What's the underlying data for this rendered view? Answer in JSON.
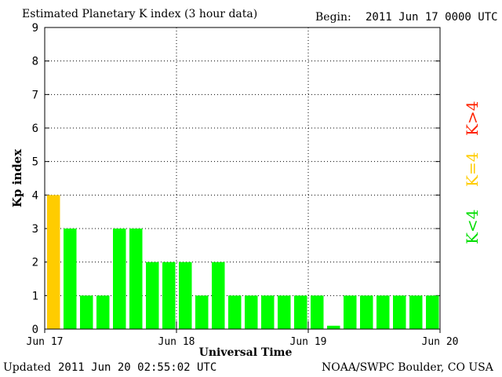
{
  "header": {
    "title": "Estimated Planetary K index (3 hour data)",
    "begin_label": "Begin:",
    "begin_value": "2011 Jun 17 0000 UTC"
  },
  "footer": {
    "updated_label": "Updated",
    "updated_value": "2011 Jun 20 02:55:02 UTC",
    "source": "NOAA/SWPC Boulder, CO USA"
  },
  "legend": {
    "low": "K<4",
    "equal": "K=4",
    "high": "K>4"
  },
  "colors": {
    "low": "#00ff00",
    "equal": "#ffcc00",
    "high": "#ff0000"
  },
  "chart_data": {
    "type": "bar",
    "title": "Estimated Planetary K index (3 hour data)",
    "xlabel": "Universal Time",
    "ylabel": "Kp index",
    "ylim": [
      0,
      9
    ],
    "yticks": [
      "0",
      "1",
      "2",
      "3",
      "4",
      "5",
      "6",
      "7",
      "8",
      "9"
    ],
    "xticks": [
      "Jun 17",
      "Jun 18",
      "Jun 19",
      "Jun 20"
    ],
    "grid": true,
    "values": [
      4,
      3,
      1,
      1,
      3,
      3,
      2,
      2,
      2,
      1,
      2,
      1,
      1,
      1,
      1,
      1,
      1,
      0.1,
      1,
      1,
      1,
      1,
      1,
      1
    ]
  }
}
